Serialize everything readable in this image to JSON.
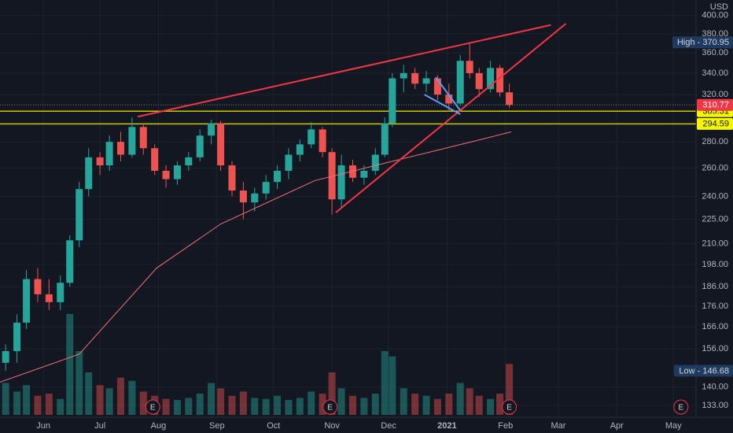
{
  "chart_data": {
    "type": "candlestick",
    "currency": "USD",
    "log_scale": true,
    "grid": true,
    "xlim": [
      0,
      369
    ],
    "ylim": [
      128.6,
      418
    ],
    "y2lim": [
      0,
      100
    ],
    "xticks": [
      {
        "value": 23,
        "label": "Jun"
      },
      {
        "value": 53,
        "label": "Jul"
      },
      {
        "value": 84,
        "label": "Aug"
      },
      {
        "value": 115,
        "label": "Sep"
      },
      {
        "value": 145,
        "label": "Oct"
      },
      {
        "value": 176,
        "label": "Nov"
      },
      {
        "value": 206,
        "label": "Dec"
      },
      {
        "value": 237,
        "label": "2021"
      },
      {
        "value": 268,
        "label": "Feb"
      },
      {
        "value": 296,
        "label": "Mar"
      },
      {
        "value": 327,
        "label": "Apr"
      },
      {
        "value": 357,
        "label": "May"
      }
    ],
    "yticks": [
      {
        "value": 400,
        "label": "400.00"
      },
      {
        "value": 380,
        "label": "380.00"
      },
      {
        "value": 360,
        "label": "360.00"
      },
      {
        "value": 340,
        "label": "340.00"
      },
      {
        "value": 320,
        "label": "320.00"
      },
      {
        "value": 280,
        "label": "280.00"
      },
      {
        "value": 260,
        "label": "260.00"
      },
      {
        "value": 240,
        "label": "240.00"
      },
      {
        "value": 225,
        "label": "225.00"
      },
      {
        "value": 210,
        "label": "210.00"
      },
      {
        "value": 198,
        "label": "198.00"
      },
      {
        "value": 186,
        "label": "186.00"
      },
      {
        "value": 176,
        "label": "176.00"
      },
      {
        "value": 166,
        "label": "166.00"
      },
      {
        "value": 156,
        "label": "156.00"
      },
      {
        "value": 140,
        "label": "140.00"
      },
      {
        "value": 133,
        "label": "133.00"
      }
    ],
    "up_color": "#26a69a",
    "down_color": "#ef5350",
    "x": [
      3,
      9,
      14,
      20,
      26,
      32,
      37,
      42,
      47,
      53,
      58,
      64,
      70,
      76,
      82,
      88,
      94,
      100,
      106,
      112,
      117,
      123,
      129,
      135,
      141,
      147,
      153,
      159,
      165,
      171,
      176,
      181,
      187,
      193,
      199,
      204,
      208,
      214,
      220,
      226,
      232,
      238,
      244,
      249,
      254,
      260,
      265,
      270
    ],
    "open": [
      150,
      155,
      168,
      190,
      182,
      178,
      188,
      212,
      245,
      268,
      262,
      280,
      270,
      292,
      275,
      258,
      252,
      262,
      268,
      285,
      295,
      262,
      244,
      236,
      242,
      250,
      258,
      270,
      278,
      290,
      272,
      238,
      262,
      253,
      258,
      270,
      295,
      335,
      340,
      330,
      335,
      320,
      312,
      352,
      340,
      325,
      345,
      322
    ],
    "high": [
      158,
      172,
      195,
      196,
      190,
      192,
      215,
      250,
      275,
      272,
      285,
      288,
      300,
      294,
      278,
      262,
      265,
      272,
      290,
      298,
      297,
      265,
      250,
      246,
      255,
      262,
      275,
      282,
      296,
      292,
      275,
      270,
      266,
      262,
      275,
      300,
      340,
      348,
      345,
      342,
      338,
      330,
      358,
      370.95,
      345,
      352,
      348,
      330
    ],
    "low": [
      146.68,
      150,
      165,
      178,
      174,
      174,
      186,
      208,
      240,
      255,
      258,
      265,
      268,
      270,
      255,
      246,
      248,
      258,
      265,
      278,
      258,
      240,
      225,
      230,
      238,
      245,
      252,
      265,
      275,
      268,
      228,
      232,
      250,
      248,
      255,
      268,
      292,
      322,
      325,
      322,
      315,
      305,
      310,
      335,
      318,
      322,
      318,
      308
    ],
    "close": [
      155,
      168,
      190,
      182,
      178,
      188,
      212,
      245,
      268,
      262,
      280,
      270,
      292,
      275,
      258,
      252,
      262,
      268,
      285,
      295,
      262,
      244,
      236,
      242,
      250,
      258,
      270,
      278,
      290,
      272,
      238,
      262,
      253,
      258,
      270,
      295,
      335,
      340,
      330,
      335,
      320,
      312,
      352,
      340,
      325,
      345,
      322,
      310.77
    ],
    "volume": [
      30,
      22,
      28,
      18,
      20,
      15,
      95,
      60,
      40,
      28,
      25,
      35,
      32,
      22,
      18,
      15,
      14,
      16,
      20,
      30,
      25,
      18,
      22,
      16,
      15,
      18,
      14,
      16,
      22,
      20,
      40,
      25,
      18,
      16,
      20,
      60,
      55,
      25,
      20,
      18,
      15,
      20,
      30,
      25,
      18,
      15,
      20,
      48
    ],
    "moving_average": {
      "color": "#f07178",
      "x": [
        0,
        42,
        83,
        117,
        167,
        208,
        250,
        271
      ],
      "values": [
        142,
        153.7,
        196,
        222,
        251,
        265,
        280,
        288
      ]
    },
    "trend_lines": [
      {
        "color": "#f23645",
        "x": [
          73,
          292
        ],
        "values": [
          300.6,
          389.5
        ]
      },
      {
        "color": "#f23645",
        "x": [
          178,
          300
        ],
        "values": [
          229.3,
          391
        ]
      },
      {
        "color": "#5b9cf6",
        "x": [
          225,
          244
        ],
        "values": [
          320,
          302.7
        ]
      },
      {
        "color": "#5b9cf6",
        "x": [
          231,
          244
        ],
        "values": [
          336,
          306
        ]
      }
    ],
    "levels": [
      {
        "value": 305.31,
        "label": "305.31",
        "color": "#c8c800"
      },
      {
        "value": 294.59,
        "label": "294.59",
        "color": "#c8c800"
      }
    ],
    "last_price": {
      "value": 310.77,
      "label": "310.77",
      "color": "#f23645"
    },
    "high_label": {
      "text": "High - 370.95",
      "value": 370.95
    },
    "low_label": {
      "text": "Low - 146.68",
      "value": 146.68
    },
    "earnings": {
      "label": "E",
      "x": [
        81,
        175,
        270,
        361
      ]
    }
  }
}
